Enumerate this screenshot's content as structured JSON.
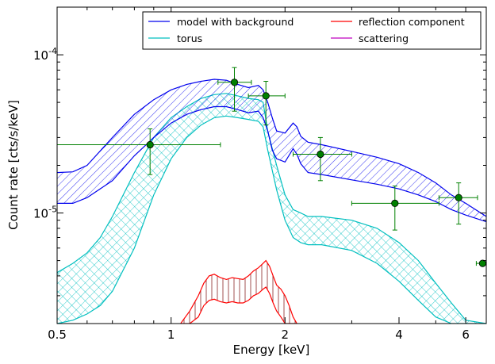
{
  "chart_data": {
    "type": "line",
    "xlabel": "Energy [keV]",
    "ylabel": "Count rate [cts/s/keV]",
    "xscale": "log",
    "yscale": "log",
    "xlim": [
      0.5,
      6.8
    ],
    "ylim": [
      2e-06,
      0.0002
    ],
    "x_ticks": [
      {
        "value": 0.5,
        "label": "0.5"
      },
      {
        "value": 1,
        "label": "1"
      },
      {
        "value": 2,
        "label": "2"
      },
      {
        "value": 4,
        "label": "4"
      },
      {
        "value": 6,
        "label": "6"
      }
    ],
    "y_ticks": [
      {
        "value": 1e-05,
        "label": "10",
        "exp": "-5"
      },
      {
        "value": 0.0001,
        "label": "10",
        "exp": "-4"
      }
    ],
    "legend": {
      "position": "top-right",
      "columns": 2,
      "entries": [
        {
          "label": "model with background",
          "color": "#0000ee"
        },
        {
          "label": "reflection component",
          "color": "#ff0000"
        },
        {
          "label": "torus",
          "color": "#00bfbf"
        },
        {
          "label": "scattering",
          "color": "#bf00bf"
        }
      ]
    },
    "bands": [
      {
        "name": "model with background",
        "color": "#0000ee",
        "hatch": "diag",
        "x": [
          0.5,
          0.55,
          0.6,
          0.7,
          0.8,
          0.9,
          1.0,
          1.1,
          1.2,
          1.3,
          1.4,
          1.5,
          1.6,
          1.7,
          1.75,
          1.8,
          1.85,
          1.9,
          2.0,
          2.1,
          2.15,
          2.2,
          2.3,
          2.5,
          3.0,
          3.5,
          4.0,
          4.5,
          5.0,
          5.5,
          6.0,
          6.8
        ],
        "upper": [
          1.8e-05,
          1.82e-05,
          2e-05,
          3e-05,
          4.2e-05,
          5.2e-05,
          6e-05,
          6.5e-05,
          6.8e-05,
          7e-05,
          6.9e-05,
          6.5e-05,
          6.2e-05,
          6.4e-05,
          6e-05,
          5e-05,
          4e-05,
          3.3e-05,
          3.2e-05,
          3.7e-05,
          3.5e-05,
          3.05e-05,
          2.8e-05,
          2.7e-05,
          2.45e-05,
          2.25e-05,
          2.05e-05,
          1.8e-05,
          1.55e-05,
          1.3e-05,
          1.15e-05,
          9.5e-06
        ],
        "lower": [
          1.15e-05,
          1.15e-05,
          1.25e-05,
          1.6e-05,
          2.3e-05,
          3e-05,
          3.7e-05,
          4.2e-05,
          4.5e-05,
          4.7e-05,
          4.7e-05,
          4.5e-05,
          4.3e-05,
          4.4e-05,
          4e-05,
          3.3e-05,
          2.5e-05,
          2.2e-05,
          2.1e-05,
          2.55e-05,
          2.35e-05,
          2.05e-05,
          1.8e-05,
          1.75e-05,
          1.62e-05,
          1.52e-05,
          1.42e-05,
          1.3e-05,
          1.18e-05,
          1.05e-05,
          9.7e-06,
          8.8e-06
        ]
      },
      {
        "name": "torus",
        "color": "#00bfbf",
        "hatch": "cross",
        "x": [
          0.5,
          0.55,
          0.6,
          0.65,
          0.7,
          0.8,
          0.9,
          1.0,
          1.1,
          1.2,
          1.3,
          1.4,
          1.5,
          1.6,
          1.7,
          1.75,
          1.8,
          1.9,
          2.0,
          2.1,
          2.2,
          2.3,
          2.5,
          3.0,
          3.5,
          4.0,
          4.5,
          5.0,
          5.5,
          6.0,
          6.8
        ],
        "upper": [
          4.2e-06,
          4.8e-06,
          5.6e-06,
          7e-06,
          9.5e-06,
          1.8e-05,
          3e-05,
          4e-05,
          4.7e-05,
          5.3e-05,
          5.6e-05,
          5.7e-05,
          5.5e-05,
          5.3e-05,
          5.2e-05,
          5e-05,
          3.3e-05,
          2e-05,
          1.3e-05,
          1.05e-05,
          1e-05,
          9.5e-06,
          9.5e-06,
          9e-06,
          8e-06,
          6.5e-06,
          5e-06,
          3.6e-06,
          2.7e-06,
          2.1e-06,
          2e-06
        ],
        "lower": [
          2e-06,
          2.1e-06,
          2.3e-06,
          2.6e-06,
          3.2e-06,
          6e-06,
          1.3e-05,
          2.2e-05,
          3e-05,
          3.6e-05,
          4e-05,
          4.1e-05,
          4e-05,
          3.9e-05,
          3.8e-05,
          3.5e-05,
          2.5e-05,
          1.4e-05,
          9e-06,
          7e-06,
          6.5e-06,
          6.3e-06,
          6.3e-06,
          5.8e-06,
          4.8e-06,
          3.7e-06,
          2.8e-06,
          2.2e-06,
          2e-06,
          2e-06,
          2e-06
        ]
      }
    ],
    "reflection_component": {
      "name": "reflection component",
      "color": "#ff0000",
      "x": [
        1.06,
        1.12,
        1.18,
        1.22,
        1.26,
        1.3,
        1.35,
        1.4,
        1.45,
        1.5,
        1.55,
        1.6,
        1.65,
        1.7,
        1.75,
        1.78,
        1.82,
        1.86,
        1.9,
        1.95,
        2.0,
        2.05,
        2.1,
        2.15
      ],
      "upper": [
        2e-06,
        2.4e-06,
        3e-06,
        3.6e-06,
        4e-06,
        4.1e-06,
        3.9e-06,
        3.8e-06,
        3.9e-06,
        3.85e-06,
        3.8e-06,
        4e-06,
        4.3e-06,
        4.5e-06,
        4.8e-06,
        5e-06,
        4.6e-06,
        4e-06,
        3.5e-06,
        3.3e-06,
        3e-06,
        2.6e-06,
        2.2e-06,
        2e-06
      ],
      "lower": [
        2e-06,
        2e-06,
        2.2e-06,
        2.6e-06,
        2.8e-06,
        2.85e-06,
        2.75e-06,
        2.7e-06,
        2.75e-06,
        2.7e-06,
        2.7e-06,
        2.8e-06,
        3e-06,
        3.1e-06,
        3.3e-06,
        3.4e-06,
        3.1e-06,
        2.7e-06,
        2.4e-06,
        2.2e-06,
        2e-06,
        2e-06,
        2e-06,
        2e-06
      ]
    },
    "data_points": {
      "color": "#008000",
      "points": [
        {
          "x": 0.88,
          "y": 2.7e-05,
          "xlo": 0.5,
          "xhi": 1.35,
          "ylo": 1.75e-05,
          "yhi": 3.4e-05
        },
        {
          "x": 1.47,
          "y": 6.7e-05,
          "xlo": 1.33,
          "xhi": 1.63,
          "ylo": 4.4e-05,
          "yhi": 8.3e-05
        },
        {
          "x": 1.78,
          "y": 5.5e-05,
          "xlo": 1.6,
          "xhi": 2.0,
          "ylo": 3.6e-05,
          "yhi": 6.8e-05
        },
        {
          "x": 2.48,
          "y": 2.35e-05,
          "xlo": 2.1,
          "xhi": 3.0,
          "ylo": 1.6e-05,
          "yhi": 3e-05
        },
        {
          "x": 3.9,
          "y": 1.15e-05,
          "xlo": 3.0,
          "xhi": 5.1,
          "ylo": 7.8e-06,
          "yhi": 1.48e-05
        },
        {
          "x": 5.75,
          "y": 1.25e-05,
          "xlo": 5.1,
          "xhi": 6.45,
          "ylo": 8.5e-06,
          "yhi": 1.55e-05
        },
        {
          "x": 6.65,
          "y": 4.8e-06,
          "xlo": 6.4,
          "xhi": 6.8,
          "ylo": 4.8e-06,
          "yhi": 4.8e-06
        }
      ]
    }
  }
}
